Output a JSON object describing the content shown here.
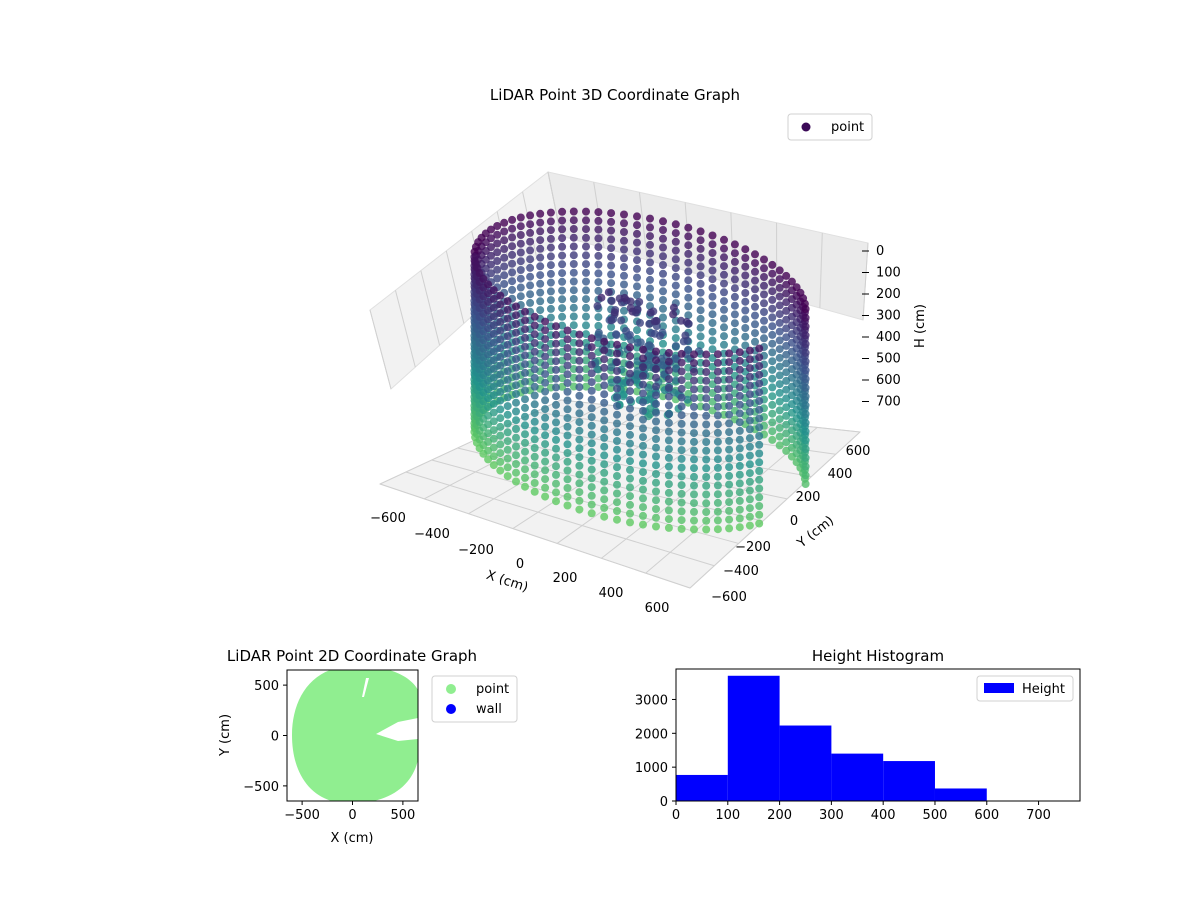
{
  "chart_data": [
    {
      "type": "scatter3d",
      "title": "LiDAR Point 3D Coordinate Graph",
      "xlabel": "X (cm)",
      "ylabel": "Y (cm)",
      "zlabel": "H (cm)",
      "xticks": [
        "−600",
        "−400",
        "−200",
        "0",
        "200",
        "400",
        "600"
      ],
      "yticks": [
        "−600",
        "−400",
        "−200",
        "0",
        "200",
        "400",
        "600"
      ],
      "zticks": [
        "0",
        "100",
        "200",
        "300",
        "400",
        "500",
        "600",
        "700"
      ],
      "xlim": [
        -650,
        650
      ],
      "ylim": [
        -650,
        650
      ],
      "zlim": [
        0,
        750
      ],
      "z_inverted": true,
      "colormap": "viridis",
      "legend": [
        {
          "label": "point",
          "color": "#3b0a57"
        }
      ],
      "legend_position": "top-right",
      "grid": true,
      "shape": "ring wall of radius ~600 cm, height 0–700 cm, with interior furniture and an opening on the +X side"
    },
    {
      "type": "scatter",
      "title": "LiDAR Point 2D Coordinate Graph",
      "xlabel": "X (cm)",
      "ylabel": "Y (cm)",
      "xticks": [
        "−500",
        "0",
        "500"
      ],
      "yticks": [
        "500",
        "0",
        "−500"
      ],
      "xlim": [
        -650,
        650
      ],
      "ylim": [
        -650,
        650
      ],
      "series": [
        {
          "name": "point",
          "color": "#90ee90"
        },
        {
          "name": "wall",
          "color": "#0000ff"
        }
      ],
      "legend_position": "outside right"
    },
    {
      "type": "bar",
      "title": "Height Histogram",
      "bins": [
        [
          0,
          100
        ],
        [
          100,
          200
        ],
        [
          200,
          300
        ],
        [
          300,
          400
        ],
        [
          400,
          500
        ],
        [
          500,
          600
        ],
        [
          600,
          700
        ],
        [
          700,
          780
        ]
      ],
      "values": [
        770,
        3700,
        2230,
        1400,
        1180,
        370,
        0,
        0
      ],
      "xticks": [
        "0",
        "100",
        "200",
        "300",
        "400",
        "500",
        "600",
        "700"
      ],
      "yticks": [
        "0",
        "1000",
        "2000",
        "3000"
      ],
      "xlim": [
        0,
        780
      ],
      "ylim": [
        0,
        3900
      ],
      "color": "#0000ff",
      "legend": [
        {
          "label": "Height",
          "color": "#0000ff"
        }
      ],
      "legend_position": "top-right"
    }
  ]
}
